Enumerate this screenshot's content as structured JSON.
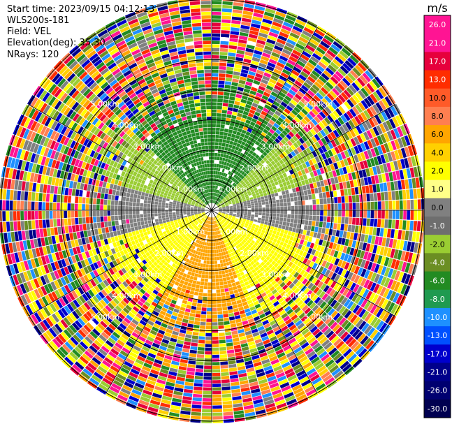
{
  "info": {
    "start_time": "Start time: 2023/09/15 04:12:13",
    "instrument": "WLS200s-181",
    "field": "Field: VEL",
    "elevation": "Elevation(deg): 35.30",
    "nrays": "NRays: 120"
  },
  "chart_data": {
    "type": "heatmap",
    "projection": "polar (PPI scan)",
    "ring_labels": [
      "1.00km",
      "2.00km",
      "3.00km",
      "4.00km",
      "5.00km"
    ],
    "rings_km": [
      1,
      2,
      3,
      4,
      5
    ],
    "max_range_km": 7.0,
    "rays": 120,
    "colorbar": {
      "unit": "m/s",
      "tick_labels": [
        "26.0",
        "21.0",
        "17.0",
        "13.0",
        "10.0",
        "8.0",
        "6.0",
        "4.0",
        "2.0",
        "1.0",
        "0.0",
        "-1.0",
        "-2.0",
        "-4.0",
        "-6.0",
        "-8.0",
        "-10.0",
        "-13.0",
        "-17.0",
        "-21.0",
        "-26.0",
        "-30.0"
      ],
      "colors": [
        "#ff1493",
        "#ff1493",
        "#e6003c",
        "#ff2d00",
        "#ff5a28",
        "#ff7f50",
        "#ffa500",
        "#ffd000",
        "#ffff00",
        "#ffff88",
        "#808080",
        "#6e6e6e",
        "#9acd32",
        "#6b8e23",
        "#228b22",
        "#1f9a50",
        "#1e90ff",
        "#0050ff",
        "#0000cd",
        "#00008b",
        "#000070",
        "#000050"
      ]
    },
    "sectors": [
      {
        "from_deg": 0,
        "to_deg": 45,
        "color": "#228b22",
        "desc": "north"
      },
      {
        "from_deg": 45,
        "to_deg": 75,
        "color": "#9acd32"
      },
      {
        "from_deg": 75,
        "to_deg": 105,
        "color": "#808080"
      },
      {
        "from_deg": 105,
        "to_deg": 160,
        "color": "#ffff00"
      },
      {
        "from_deg": 160,
        "to_deg": 210,
        "color": "#ffa500"
      },
      {
        "from_deg": 210,
        "to_deg": 255,
        "color": "#ffff00"
      },
      {
        "from_deg": 255,
        "to_deg": 285,
        "color": "#808080"
      },
      {
        "from_deg": 285,
        "to_deg": 315,
        "color": "#9acd32"
      },
      {
        "from_deg": 315,
        "to_deg": 360,
        "color": "#228b22"
      }
    ]
  }
}
